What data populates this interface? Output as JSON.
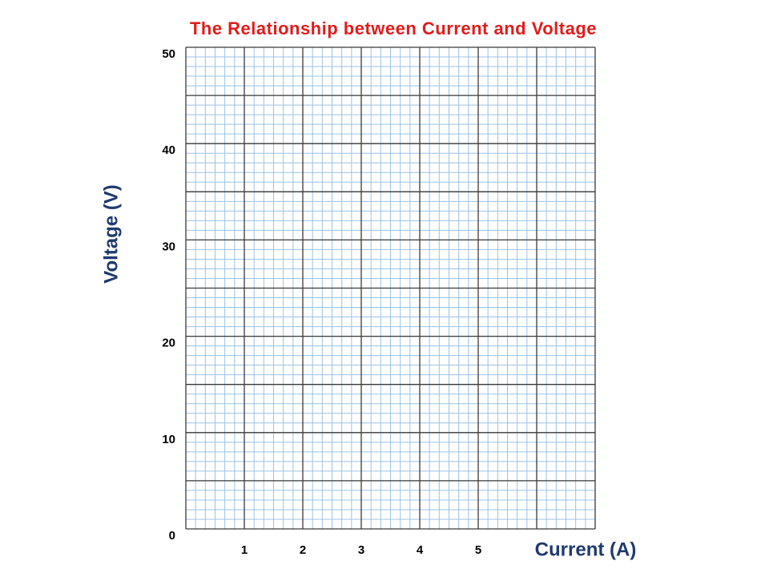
{
  "chart_data": {
    "type": "line",
    "title": "The Relationship between Current and Voltage",
    "x_label": "Current (A)",
    "y_label": "Voltage (V)",
    "xlim": [
      0,
      7
    ],
    "xticks": [
      1,
      2,
      3,
      4,
      5
    ],
    "ylim": [
      0,
      50
    ],
    "yticks": [
      0,
      10,
      20,
      30,
      40,
      50
    ],
    "grid": true,
    "series": []
  }
}
